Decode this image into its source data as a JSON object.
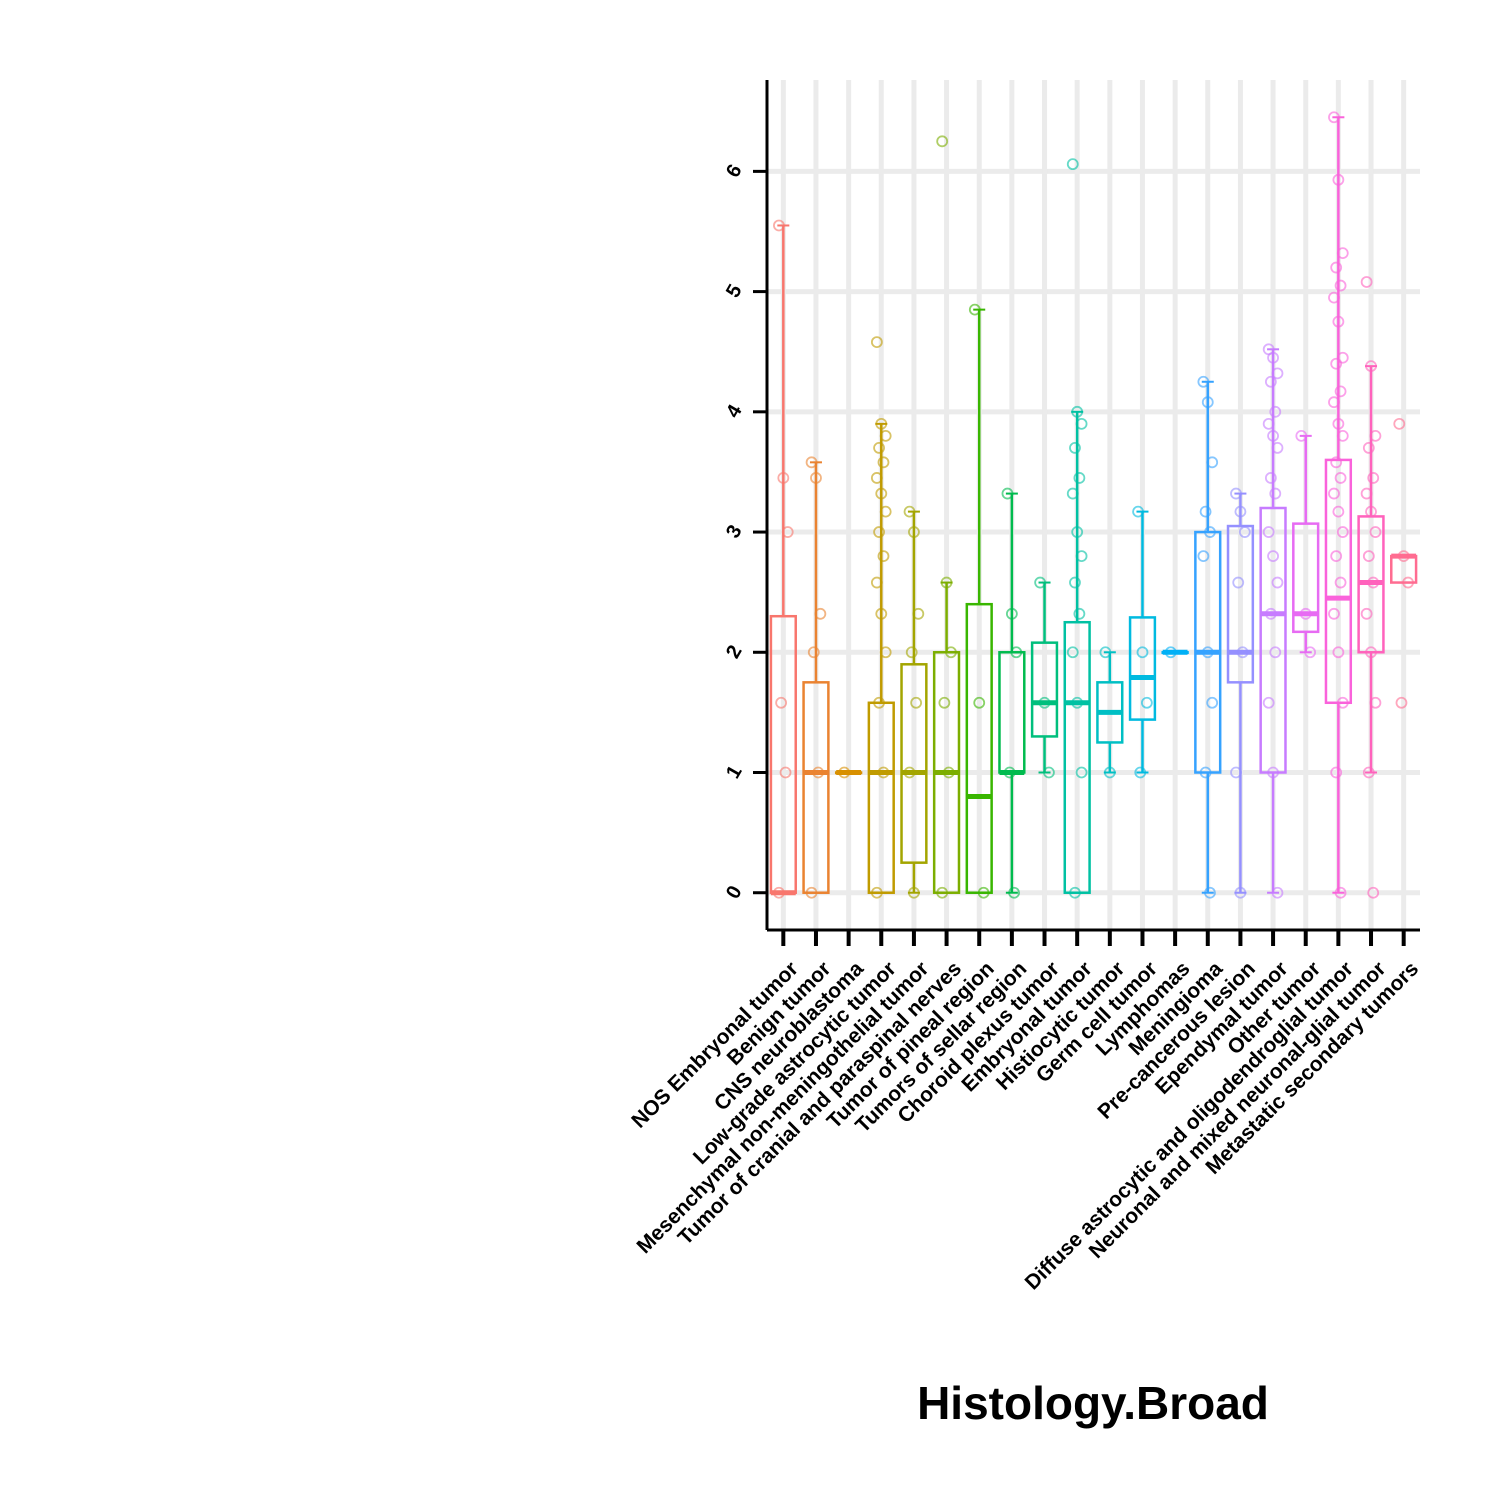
{
  "chart_data": {
    "type": "box",
    "x_label": "Histology.Broad",
    "ylim": [
      -0.31,
      6.76
    ],
    "yticks": [
      0,
      1,
      2,
      3,
      4,
      5,
      6
    ],
    "grid": true,
    "series": [
      {
        "name": "NOS Embryonal tumor",
        "color": "#F8766D",
        "whisker_low": 0,
        "q1": 0,
        "median": 0,
        "q3": 2.3,
        "whisker_high": 5.55,
        "points": [
          5.55,
          3.45,
          3.0,
          1.58,
          1,
          0
        ]
      },
      {
        "name": "Benign tumor",
        "color": "#EA8331",
        "whisker_low": 0,
        "q1": 0,
        "median": 1,
        "q3": 1.75,
        "whisker_high": 3.58,
        "points": [
          3.58,
          3.45,
          2.32,
          2.0,
          1,
          0
        ]
      },
      {
        "name": "CNS neuroblastoma",
        "color": "#D89000",
        "whisker_low": 1,
        "q1": 1,
        "median": 1,
        "q3": 1,
        "whisker_high": 1,
        "points": [
          1
        ]
      },
      {
        "name": "Low-grade astrocytic tumor",
        "color": "#C09B00",
        "whisker_low": 0,
        "q1": 0,
        "median": 1,
        "q3": 1.58,
        "whisker_high": 3.9,
        "points": [
          4.58,
          3.9,
          3.8,
          3.7,
          3.58,
          3.45,
          3.32,
          3.17,
          3.0,
          2.8,
          2.58,
          2.32,
          2.0,
          1.58,
          1,
          0
        ]
      },
      {
        "name": "Mesenchymal non-meningothelial tumor",
        "color": "#A3A500",
        "whisker_low": 0,
        "q1": 0.25,
        "median": 1,
        "q3": 1.9,
        "whisker_high": 3.17,
        "points": [
          3.17,
          3.0,
          2.32,
          2.0,
          1.58,
          1,
          0
        ]
      },
      {
        "name": "Tumor of cranial and paraspinal nerves",
        "color": "#7CAE00",
        "whisker_low": 0,
        "q1": 0,
        "median": 1,
        "q3": 2,
        "whisker_high": 2.58,
        "points": [
          6.25,
          2.58,
          2.0,
          1.58,
          1,
          0
        ]
      },
      {
        "name": "Tumor of pineal region",
        "color": "#39B600",
        "whisker_low": 0,
        "q1": 0,
        "median": 0.8,
        "q3": 2.4,
        "whisker_high": 4.85,
        "points": [
          4.85,
          1.58,
          0
        ]
      },
      {
        "name": "Tumors of sellar region",
        "color": "#00BB4E",
        "whisker_low": 0,
        "q1": 1,
        "median": 1,
        "q3": 2,
        "whisker_high": 3.32,
        "points": [
          3.32,
          2.32,
          2.0,
          1,
          0
        ]
      },
      {
        "name": "Choroid plexus tumor",
        "color": "#00BF7D",
        "whisker_low": 1,
        "q1": 1.3,
        "median": 1.58,
        "q3": 2.08,
        "whisker_high": 2.58,
        "points": [
          2.58,
          1.58,
          1
        ]
      },
      {
        "name": "Embryonal tumor",
        "color": "#00C1A3",
        "whisker_low": 0,
        "q1": 0,
        "median": 1.58,
        "q3": 2.25,
        "whisker_high": 4.0,
        "points": [
          6.06,
          4.0,
          3.9,
          3.7,
          3.45,
          3.32,
          3.0,
          2.8,
          2.58,
          2.32,
          2.0,
          1.58,
          1,
          0
        ]
      },
      {
        "name": "Histiocytic tumor",
        "color": "#00BFC4",
        "whisker_low": 1,
        "q1": 1.25,
        "median": 1.5,
        "q3": 1.75,
        "whisker_high": 2,
        "points": [
          2.0,
          1
        ]
      },
      {
        "name": "Germ cell tumor",
        "color": "#00BAE0",
        "whisker_low": 1,
        "q1": 1.44,
        "median": 1.79,
        "q3": 2.29,
        "whisker_high": 3.17,
        "points": [
          3.17,
          2.0,
          1.58,
          1
        ]
      },
      {
        "name": "Lymphomas",
        "color": "#00B0F6",
        "whisker_low": 2,
        "q1": 2,
        "median": 2,
        "q3": 2,
        "whisker_high": 2,
        "points": [
          2
        ]
      },
      {
        "name": "Meningioma",
        "color": "#35A2FF",
        "whisker_low": 0,
        "q1": 1,
        "median": 2,
        "q3": 3,
        "whisker_high": 4.25,
        "points": [
          4.25,
          4.08,
          3.58,
          3.17,
          3.0,
          2.8,
          2.0,
          1.58,
          1,
          0
        ]
      },
      {
        "name": "Pre-cancerous lesion",
        "color": "#9590FF",
        "whisker_low": 0,
        "q1": 1.75,
        "median": 2,
        "q3": 3.05,
        "whisker_high": 3.32,
        "points": [
          3.32,
          3.17,
          3.0,
          2.58,
          2.0,
          1,
          0
        ]
      },
      {
        "name": "Ependymal tumor",
        "color": "#C77CFF",
        "whisker_low": 0,
        "q1": 1,
        "median": 2.32,
        "q3": 3.2,
        "whisker_high": 4.52,
        "points": [
          4.52,
          4.45,
          4.32,
          4.25,
          4.0,
          3.9,
          3.8,
          3.7,
          3.45,
          3.32,
          3.0,
          2.8,
          2.58,
          2.32,
          2.0,
          1.58,
          1,
          0
        ]
      },
      {
        "name": "Other tumor",
        "color": "#E76BF3",
        "whisker_low": 2,
        "q1": 2.17,
        "median": 2.32,
        "q3": 3.07,
        "whisker_high": 3.8,
        "points": [
          3.8,
          2.32,
          2.0
        ]
      },
      {
        "name": "Diffuse astrocytic and oligodendroglial tumor",
        "color": "#FA62DB",
        "whisker_low": 0,
        "q1": 1.58,
        "median": 2.45,
        "q3": 3.6,
        "whisker_high": 6.45,
        "points": [
          6.45,
          5.93,
          5.32,
          5.2,
          5.05,
          4.95,
          4.75,
          4.45,
          4.4,
          4.17,
          4.08,
          3.9,
          3.8,
          3.58,
          3.45,
          3.32,
          3.17,
          3.0,
          2.8,
          2.58,
          2.32,
          2.0,
          1.58,
          1,
          0
        ]
      },
      {
        "name": "Neuronal and mixed neuronal-glial tumor",
        "color": "#FF62BC",
        "whisker_low": 1,
        "q1": 2.0,
        "median": 2.58,
        "q3": 3.13,
        "whisker_high": 4.38,
        "points": [
          5.08,
          4.38,
          3.8,
          3.7,
          3.45,
          3.32,
          3.17,
          3.0,
          2.8,
          2.58,
          2.32,
          2.0,
          1.58,
          1,
          0
        ]
      },
      {
        "name": "Metastatic secondary tumors",
        "color": "#FF6C91",
        "whisker_low": 2.58,
        "q1": 2.58,
        "median": 2.8,
        "q3": 2.8,
        "whisker_high": 2.8,
        "points": [
          3.9,
          2.8,
          2.58,
          1.58
        ]
      }
    ]
  }
}
